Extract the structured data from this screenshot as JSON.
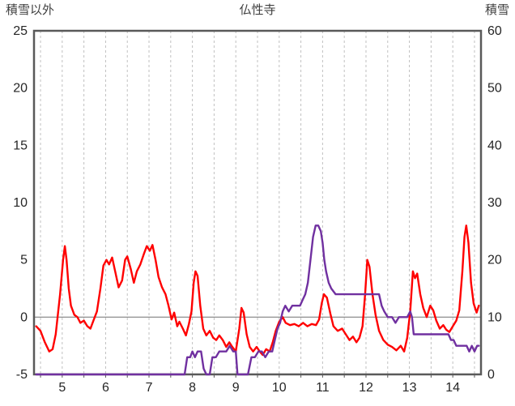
{
  "chart_data": {
    "type": "line",
    "title": "仏性寺",
    "left_axis": {
      "label": "積雪以外",
      "min": -5,
      "max": 25,
      "ticks": [
        25,
        20,
        15,
        10,
        5,
        0,
        -5
      ]
    },
    "right_axis": {
      "label": "積雪",
      "min": 0,
      "max": 60,
      "ticks": [
        60,
        50,
        40,
        30,
        20,
        10,
        0
      ]
    },
    "x_axis": {
      "min": 4.35,
      "max": 14.65,
      "ticks": [
        5,
        6,
        7,
        8,
        9,
        10,
        11,
        12,
        13,
        14
      ],
      "grid_start": 4.5,
      "grid_end": 14.5,
      "grid_step": 0.5
    },
    "colors": {
      "grid": "#c0c0c0",
      "border": "#595959",
      "zero_line": "#808080",
      "text": "#262626",
      "title_text": "#404040",
      "red": "#ff0000",
      "purple": "#7030a0"
    },
    "legend": "none",
    "series": [
      {
        "name": "red-line",
        "axis": "left",
        "color": "#ff0000",
        "points": [
          [
            4.4,
            -0.8
          ],
          [
            4.5,
            -1.2
          ],
          [
            4.6,
            -2.2
          ],
          [
            4.7,
            -3.0
          ],
          [
            4.78,
            -2.8
          ],
          [
            4.85,
            -1.5
          ],
          [
            4.95,
            2.0
          ],
          [
            5.02,
            5.0
          ],
          [
            5.06,
            6.2
          ],
          [
            5.1,
            5.0
          ],
          [
            5.15,
            2.5
          ],
          [
            5.2,
            1.0
          ],
          [
            5.28,
            0.2
          ],
          [
            5.35,
            0.0
          ],
          [
            5.42,
            -0.5
          ],
          [
            5.5,
            -0.3
          ],
          [
            5.58,
            -0.8
          ],
          [
            5.65,
            -1.0
          ],
          [
            5.72,
            -0.3
          ],
          [
            5.8,
            0.5
          ],
          [
            5.88,
            2.5
          ],
          [
            5.95,
            4.5
          ],
          [
            6.02,
            5.0
          ],
          [
            6.08,
            4.6
          ],
          [
            6.15,
            5.2
          ],
          [
            6.22,
            4.0
          ],
          [
            6.3,
            2.6
          ],
          [
            6.38,
            3.2
          ],
          [
            6.45,
            5.0
          ],
          [
            6.5,
            5.3
          ],
          [
            6.58,
            4.2
          ],
          [
            6.65,
            3.0
          ],
          [
            6.72,
            4.0
          ],
          [
            6.8,
            4.6
          ],
          [
            6.88,
            5.5
          ],
          [
            6.95,
            6.2
          ],
          [
            7.02,
            5.8
          ],
          [
            7.08,
            6.3
          ],
          [
            7.15,
            5.0
          ],
          [
            7.22,
            3.5
          ],
          [
            7.3,
            2.6
          ],
          [
            7.38,
            2.0
          ],
          [
            7.45,
            1.0
          ],
          [
            7.52,
            -0.2
          ],
          [
            7.58,
            0.4
          ],
          [
            7.65,
            -0.8
          ],
          [
            7.7,
            -0.4
          ],
          [
            7.78,
            -1.0
          ],
          [
            7.85,
            -1.6
          ],
          [
            7.92,
            -0.6
          ],
          [
            7.98,
            0.5
          ],
          [
            8.03,
            3.0
          ],
          [
            8.07,
            4.0
          ],
          [
            8.12,
            3.6
          ],
          [
            8.18,
            1.0
          ],
          [
            8.25,
            -1.0
          ],
          [
            8.32,
            -1.6
          ],
          [
            8.4,
            -1.2
          ],
          [
            8.48,
            -1.8
          ],
          [
            8.55,
            -2.0
          ],
          [
            8.62,
            -1.6
          ],
          [
            8.7,
            -2.0
          ],
          [
            8.78,
            -2.6
          ],
          [
            8.85,
            -2.2
          ],
          [
            8.92,
            -2.6
          ],
          [
            9.0,
            -3.0
          ],
          [
            9.08,
            -1.0
          ],
          [
            9.13,
            0.8
          ],
          [
            9.18,
            0.4
          ],
          [
            9.25,
            -1.5
          ],
          [
            9.32,
            -2.6
          ],
          [
            9.4,
            -3.0
          ],
          [
            9.48,
            -2.6
          ],
          [
            9.55,
            -3.0
          ],
          [
            9.62,
            -3.3
          ],
          [
            9.7,
            -2.8
          ],
          [
            9.78,
            -3.0
          ],
          [
            9.85,
            -2.2
          ],
          [
            9.92,
            -1.2
          ],
          [
            10.0,
            -0.4
          ],
          [
            10.08,
            0.0
          ],
          [
            10.15,
            -0.5
          ],
          [
            10.25,
            -0.7
          ],
          [
            10.35,
            -0.6
          ],
          [
            10.45,
            -0.8
          ],
          [
            10.55,
            -0.5
          ],
          [
            10.65,
            -0.8
          ],
          [
            10.75,
            -0.6
          ],
          [
            10.85,
            -0.7
          ],
          [
            10.92,
            -0.2
          ],
          [
            10.98,
            1.2
          ],
          [
            11.03,
            2.0
          ],
          [
            11.1,
            1.7
          ],
          [
            11.18,
            0.3
          ],
          [
            11.25,
            -0.8
          ],
          [
            11.35,
            -1.2
          ],
          [
            11.45,
            -1.0
          ],
          [
            11.55,
            -1.6
          ],
          [
            11.62,
            -2.0
          ],
          [
            11.7,
            -1.7
          ],
          [
            11.78,
            -2.2
          ],
          [
            11.85,
            -1.8
          ],
          [
            11.92,
            -0.8
          ],
          [
            11.98,
            2.0
          ],
          [
            12.03,
            5.0
          ],
          [
            12.08,
            4.4
          ],
          [
            12.15,
            2.0
          ],
          [
            12.22,
            0.2
          ],
          [
            12.3,
            -1.2
          ],
          [
            12.4,
            -2.0
          ],
          [
            12.5,
            -2.4
          ],
          [
            12.6,
            -2.6
          ],
          [
            12.7,
            -2.9
          ],
          [
            12.8,
            -2.5
          ],
          [
            12.88,
            -3.0
          ],
          [
            12.95,
            -1.8
          ],
          [
            13.02,
            0.5
          ],
          [
            13.08,
            4.0
          ],
          [
            13.13,
            3.4
          ],
          [
            13.18,
            3.8
          ],
          [
            13.25,
            2.0
          ],
          [
            13.32,
            0.8
          ],
          [
            13.4,
            0.0
          ],
          [
            13.48,
            1.0
          ],
          [
            13.55,
            0.6
          ],
          [
            13.62,
            -0.3
          ],
          [
            13.7,
            -1.0
          ],
          [
            13.78,
            -0.7
          ],
          [
            13.85,
            -1.1
          ],
          [
            13.92,
            -1.3
          ],
          [
            14.0,
            -0.8
          ],
          [
            14.08,
            -0.3
          ],
          [
            14.15,
            0.6
          ],
          [
            14.22,
            4.0
          ],
          [
            14.27,
            7.0
          ],
          [
            14.31,
            8.0
          ],
          [
            14.36,
            6.5
          ],
          [
            14.42,
            3.0
          ],
          [
            14.48,
            1.2
          ],
          [
            14.55,
            0.4
          ],
          [
            14.6,
            1.0
          ]
        ]
      },
      {
        "name": "purple-line",
        "axis": "right",
        "color": "#7030a0",
        "points": [
          [
            4.4,
            0
          ],
          [
            7.82,
            0
          ],
          [
            7.88,
            3
          ],
          [
            7.95,
            3
          ],
          [
            8.0,
            4
          ],
          [
            8.06,
            3
          ],
          [
            8.12,
            4
          ],
          [
            8.2,
            4
          ],
          [
            8.26,
            1
          ],
          [
            8.32,
            0
          ],
          [
            8.4,
            0
          ],
          [
            8.46,
            3
          ],
          [
            8.54,
            3
          ],
          [
            8.62,
            4
          ],
          [
            8.7,
            4
          ],
          [
            8.78,
            4
          ],
          [
            8.86,
            5
          ],
          [
            8.94,
            4
          ],
          [
            9.0,
            4
          ],
          [
            9.04,
            0
          ],
          [
            9.28,
            0
          ],
          [
            9.36,
            3
          ],
          [
            9.44,
            3
          ],
          [
            9.52,
            4
          ],
          [
            9.6,
            4
          ],
          [
            9.68,
            3
          ],
          [
            9.76,
            4
          ],
          [
            9.84,
            4
          ],
          [
            9.9,
            6
          ],
          [
            9.96,
            8
          ],
          [
            10.02,
            9
          ],
          [
            10.08,
            11
          ],
          [
            10.14,
            12
          ],
          [
            10.22,
            11
          ],
          [
            10.3,
            12
          ],
          [
            10.4,
            12
          ],
          [
            10.48,
            12
          ],
          [
            10.54,
            13
          ],
          [
            10.6,
            14
          ],
          [
            10.66,
            16
          ],
          [
            10.72,
            20
          ],
          [
            10.78,
            24
          ],
          [
            10.84,
            26
          ],
          [
            10.9,
            26
          ],
          [
            10.96,
            25
          ],
          [
            11.0,
            23
          ],
          [
            11.04,
            20
          ],
          [
            11.08,
            18
          ],
          [
            11.14,
            16
          ],
          [
            11.2,
            15
          ],
          [
            11.3,
            14
          ],
          [
            11.6,
            14
          ],
          [
            12.0,
            14
          ],
          [
            12.3,
            14
          ],
          [
            12.36,
            12
          ],
          [
            12.42,
            11
          ],
          [
            12.5,
            10
          ],
          [
            12.6,
            10
          ],
          [
            12.68,
            9
          ],
          [
            12.76,
            10
          ],
          [
            12.85,
            10
          ],
          [
            12.95,
            10
          ],
          [
            13.02,
            11
          ],
          [
            13.06,
            10
          ],
          [
            13.1,
            7
          ],
          [
            13.3,
            7
          ],
          [
            13.6,
            7
          ],
          [
            13.9,
            7
          ],
          [
            13.96,
            6
          ],
          [
            14.02,
            6
          ],
          [
            14.08,
            5
          ],
          [
            14.2,
            5
          ],
          [
            14.32,
            5
          ],
          [
            14.38,
            4
          ],
          [
            14.44,
            5
          ],
          [
            14.5,
            4
          ],
          [
            14.56,
            5
          ],
          [
            14.6,
            5
          ]
        ]
      }
    ]
  }
}
